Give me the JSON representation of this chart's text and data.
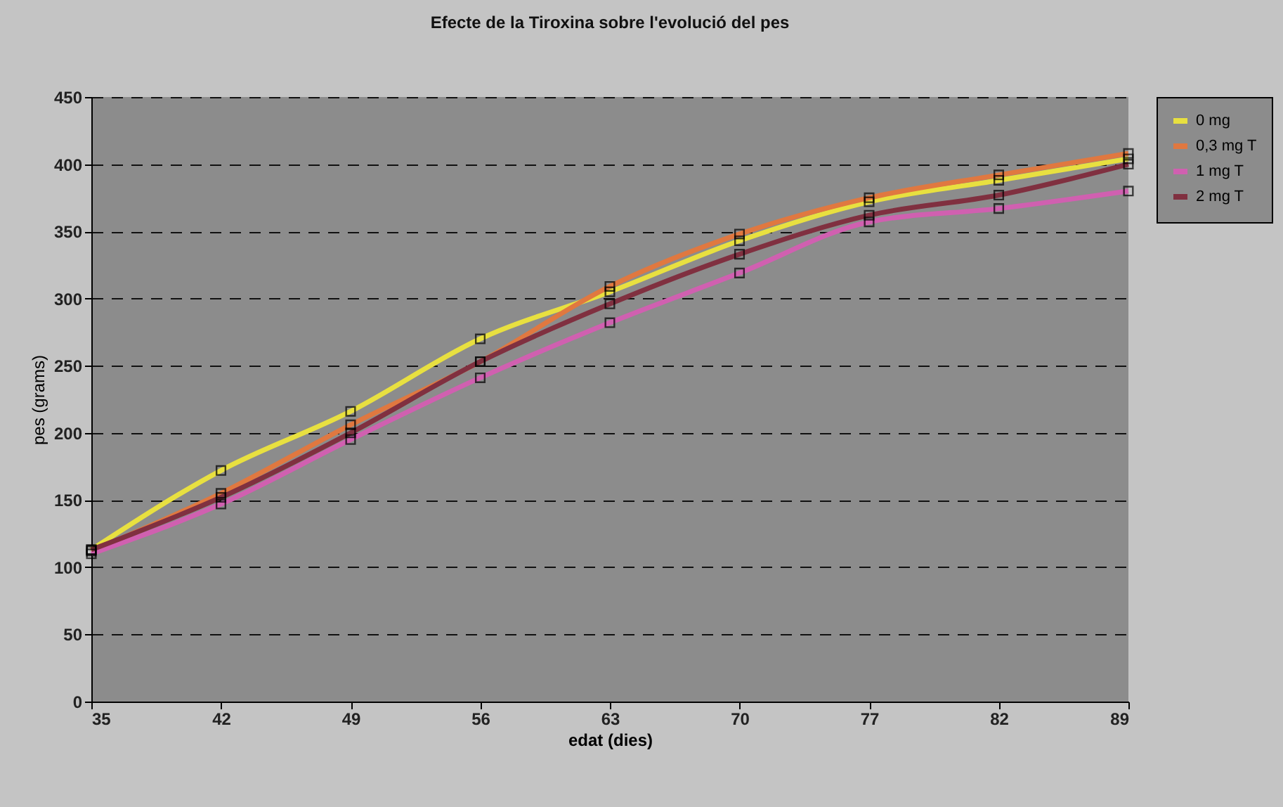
{
  "chart_data": {
    "type": "line",
    "title": "Efecte de la Tiroxina sobre l'evolució del pes",
    "xlabel": "edat (dies)",
    "ylabel": "pes (grams)",
    "categories": [
      "35",
      "42",
      "49",
      "56",
      "63",
      "70",
      "77",
      "82",
      "89"
    ],
    "series": [
      {
        "name": "0 mg",
        "color": "#e8e040",
        "values": [
          113,
          172,
          216,
          270,
          305,
          343,
          372,
          388,
          404
        ]
      },
      {
        "name": "0,3 mg T",
        "color": "#e07840",
        "values": [
          112,
          155,
          206,
          253,
          309,
          348,
          375,
          392,
          408
        ]
      },
      {
        "name": "1 mg T",
        "color": "#d060b0",
        "values": [
          110,
          147,
          195,
          241,
          282,
          319,
          357,
          367,
          380
        ]
      },
      {
        "name": "2 mg T",
        "color": "#803040",
        "values": [
          113,
          152,
          200,
          253,
          296,
          333,
          362,
          377,
          400
        ]
      }
    ],
    "ylim": [
      0,
      450
    ],
    "yticks": [
      0,
      50,
      100,
      150,
      200,
      250,
      300,
      350,
      400,
      450
    ],
    "grid": "y",
    "legend": "right",
    "marker": "square",
    "line_style": "solid"
  }
}
